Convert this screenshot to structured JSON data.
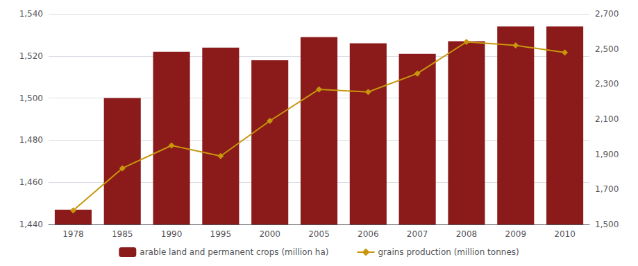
{
  "chart_data": {
    "type": "bar",
    "categories": [
      "1978",
      "1985",
      "1990",
      "1995",
      "2000",
      "2005",
      "2006",
      "2007",
      "2008",
      "2009",
      "2010"
    ],
    "series": [
      {
        "name": "arable land and permanent crops (million ha)",
        "type": "bar",
        "color": "#8B1A1A",
        "values": [
          1447,
          1500,
          1522,
          1524,
          1518,
          1529,
          1526,
          1521,
          1527,
          1534,
          1534
        ]
      },
      {
        "name": "grains production (million tonnes)",
        "type": "line",
        "axis": "y2",
        "color": "#C8960C",
        "marker": "diamond",
        "values": [
          1580,
          1820,
          1950,
          1890,
          2090,
          2270,
          2255,
          2360,
          2540,
          2520,
          2480
        ]
      }
    ],
    "ylim": [
      1440,
      1540
    ],
    "yticks": [
      {
        "value": 1440,
        "label": "1,440"
      },
      {
        "value": 1460,
        "label": "1,460"
      },
      {
        "value": 1480,
        "label": "1,480"
      },
      {
        "value": 1500,
        "label": "1,500"
      },
      {
        "value": 1520,
        "label": "1,520"
      },
      {
        "value": 1540,
        "label": "1,540"
      }
    ],
    "y2lim": [
      1500,
      2700
    ],
    "y2ticks": [
      {
        "value": 1500,
        "label": "1,500"
      },
      {
        "value": 1700,
        "label": "1,700"
      },
      {
        "value": 1900,
        "label": "1,900"
      },
      {
        "value": 2100,
        "label": "2,100"
      },
      {
        "value": 2300,
        "label": "2,300"
      },
      {
        "value": 2500,
        "label": "2,500"
      },
      {
        "value": 2700,
        "label": "2,700"
      }
    ],
    "grid": true,
    "legend": "bottom"
  }
}
